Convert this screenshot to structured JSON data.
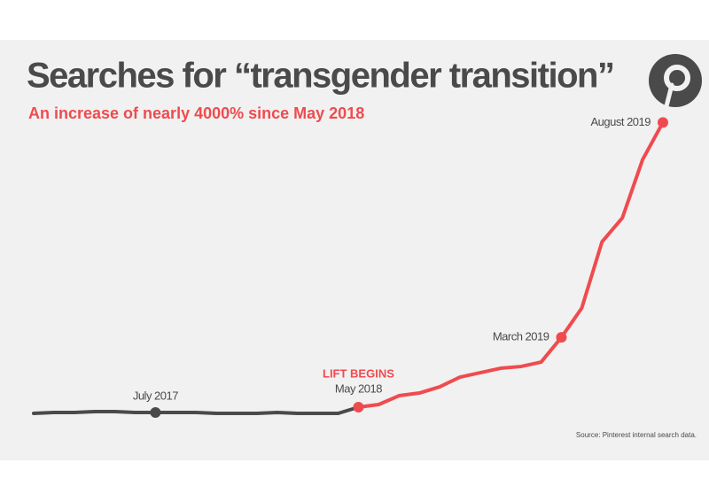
{
  "chart_data": {
    "type": "line",
    "title": "Searches for “transgender transition”",
    "subtitle": "An increase of nearly 4000% since May 2018",
    "annotation": "LIFT BEGINS",
    "source": "Source: Pinterest internal search data.",
    "categories": [
      null,
      null,
      null,
      null,
      null,
      null,
      "July 2017",
      null,
      null,
      null,
      null,
      null,
      null,
      null,
      null,
      null,
      "May 2018",
      null,
      null,
      null,
      null,
      null,
      null,
      null,
      null,
      null,
      "March 2019",
      null,
      null,
      null,
      null,
      "August 2019"
    ],
    "series": [
      {
        "color": "#4a4a4a",
        "values": [
          36,
          48,
          48,
          60,
          60,
          48,
          48,
          48,
          48,
          36,
          36,
          36,
          48,
          36,
          36,
          36,
          null,
          null,
          null,
          null,
          null,
          null,
          null,
          null,
          null,
          null,
          null,
          null,
          null,
          null,
          null,
          null
        ]
      },
      {
        "color": "#ef4b4f",
        "values": [
          null,
          null,
          null,
          null,
          null,
          null,
          null,
          null,
          null,
          null,
          null,
          null,
          null,
          null,
          null,
          null,
          120,
          156,
          276,
          312,
          396,
          528,
          588,
          648,
          672,
          732,
          1068,
          1464,
          2364,
          2688,
          3480,
          3984
        ]
      }
    ],
    "ylim": [
      0,
      4000
    ]
  }
}
